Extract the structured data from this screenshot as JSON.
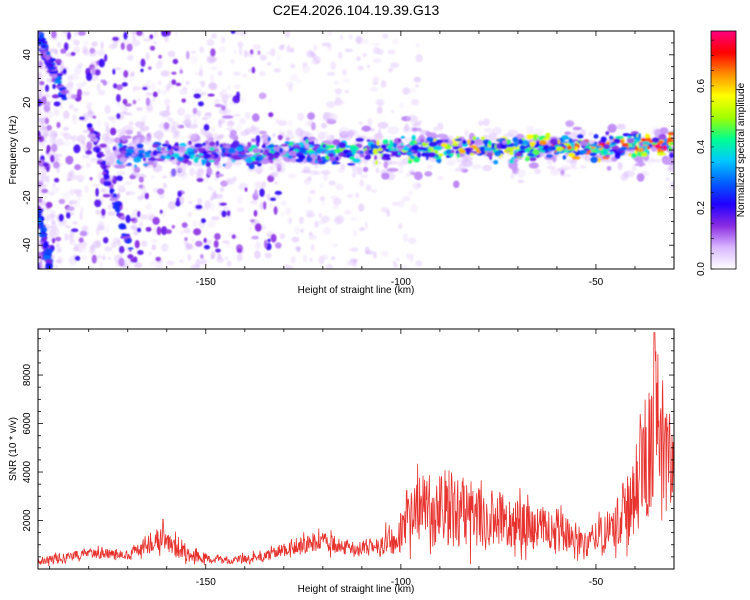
{
  "title": "C2E4.2026.104.19.39.G13",
  "chart_data": [
    {
      "type": "heatmap",
      "xlabel": "Height of straight line (km)",
      "ylabel": "Frequency (Hz)",
      "xlim": [
        -193,
        -30
      ],
      "ylim": [
        -50,
        50
      ],
      "xticks": [
        -150,
        -100,
        -50
      ],
      "yticks": [
        -40,
        -20,
        0,
        20,
        40
      ],
      "colorbar": {
        "label": "Normalized spectral amplitude",
        "range": [
          0,
          0.78
        ],
        "ticks": [
          0.0,
          0.2,
          0.4,
          0.6
        ],
        "colors": [
          "#ffffff",
          "#d9b8ff",
          "#8a2be2",
          "#2000ff",
          "#0060ff",
          "#00c8ff",
          "#00ff90",
          "#a0ff00",
          "#ffff00",
          "#ff9000",
          "#ff0000",
          "#ff0080"
        ]
      },
      "ridges": [
        {
          "name": "main-signal",
          "x_start": -172,
          "x_end": -30,
          "freq_start": -2,
          "freq_end": 2,
          "amp_start": 0.3,
          "amp_end": 0.72
        },
        {
          "name": "early-streak-1",
          "x_start": -193,
          "x_end": -186,
          "freq_start": 48,
          "freq_end": 22,
          "amp_start": 0.25,
          "amp_end": 0.3
        },
        {
          "name": "early-streak-2",
          "x_start": -180,
          "x_end": -168,
          "freq_start": 12,
          "freq_end": -48,
          "amp_start": 0.2,
          "amp_end": 0.25
        },
        {
          "name": "early-streak-3",
          "x_start": -193,
          "x_end": -190,
          "freq_start": -25,
          "freq_end": -48,
          "amp_start": 0.3,
          "amp_end": 0.3
        }
      ]
    },
    {
      "type": "line",
      "xlabel": "Height of straight line (km)",
      "ylabel": "SNR (10 * v/v)",
      "xlim": [
        -193,
        -30
      ],
      "ylim": [
        0,
        9900
      ],
      "xticks": [
        -150,
        -100,
        -50
      ],
      "yticks": [
        2000,
        4000,
        6000,
        8000
      ],
      "color": "#e8322e",
      "envelope": [
        {
          "x": -193,
          "mean": 300,
          "amp": 150
        },
        {
          "x": -180,
          "mean": 650,
          "amp": 200
        },
        {
          "x": -170,
          "mean": 600,
          "amp": 220
        },
        {
          "x": -161,
          "mean": 1300,
          "amp": 500
        },
        {
          "x": -155,
          "mean": 600,
          "amp": 300
        },
        {
          "x": -145,
          "mean": 350,
          "amp": 150
        },
        {
          "x": -135,
          "mean": 500,
          "amp": 200
        },
        {
          "x": -128,
          "mean": 900,
          "amp": 350
        },
        {
          "x": -120,
          "mean": 1100,
          "amp": 400
        },
        {
          "x": -110,
          "mean": 800,
          "amp": 300
        },
        {
          "x": -102,
          "mean": 1200,
          "amp": 600
        },
        {
          "x": -95,
          "mean": 2500,
          "amp": 1400
        },
        {
          "x": -88,
          "mean": 2500,
          "amp": 1600
        },
        {
          "x": -80,
          "mean": 2200,
          "amp": 1300
        },
        {
          "x": -70,
          "mean": 1800,
          "amp": 1000
        },
        {
          "x": -60,
          "mean": 1500,
          "amp": 800
        },
        {
          "x": -52,
          "mean": 1100,
          "amp": 600
        },
        {
          "x": -45,
          "mean": 1800,
          "amp": 900
        },
        {
          "x": -40,
          "mean": 3200,
          "amp": 1800
        },
        {
          "x": -36,
          "mean": 5200,
          "amp": 2800
        },
        {
          "x": -34,
          "mean": 6500,
          "amp": 3000
        },
        {
          "x": -32,
          "mean": 4800,
          "amp": 2500
        },
        {
          "x": -30,
          "mean": 3800,
          "amp": 2000
        }
      ],
      "peaks": [
        {
          "x": -161,
          "y": 2050
        },
        {
          "x": -35,
          "y": 9750
        }
      ]
    }
  ]
}
